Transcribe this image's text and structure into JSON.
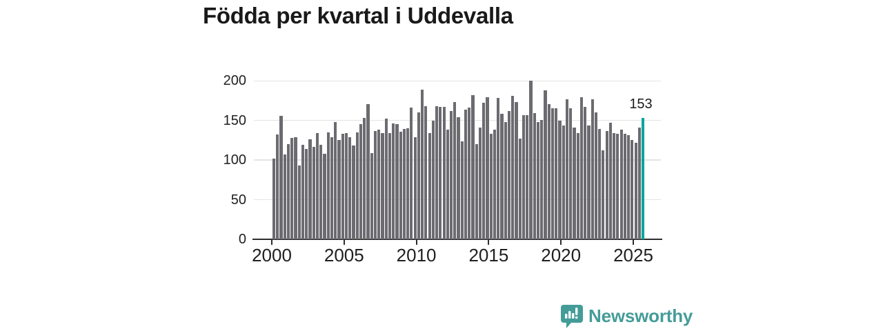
{
  "title": "Födda per kvartal i Uddevalla",
  "annotation": {
    "label": "153"
  },
  "logo": {
    "brand": "Newsworthy"
  },
  "colors": {
    "bar": "#6b6b70",
    "highlight": "#00a69c",
    "gridline": "#e3e3e3",
    "axis": "#2d2d2d",
    "text": "#202020",
    "logo_teal": "#449c98"
  },
  "chart_data": {
    "type": "bar",
    "title": "Födda per kvartal i Uddevalla",
    "frequency": "quarterly",
    "period_start": "2000-Q1",
    "period_end": "2025-Q3",
    "x_tick_labels": [
      "2000",
      "2005",
      "2010",
      "2015",
      "2020",
      "2025"
    ],
    "y_tick_labels": [
      "0",
      "50",
      "100",
      "150",
      "200"
    ],
    "y_tick_values": [
      0,
      50,
      100,
      150,
      200
    ],
    "ylim": [
      0,
      210
    ],
    "grid": "horizontal",
    "legend": "none",
    "highlight_index": 102,
    "highlight_value": 153,
    "values": [
      102,
      132,
      156,
      107,
      120,
      128,
      129,
      93,
      119,
      114,
      126,
      117,
      134,
      119,
      108,
      135,
      129,
      148,
      125,
      133,
      134,
      129,
      118,
      135,
      145,
      153,
      171,
      109,
      137,
      138,
      134,
      152,
      134,
      146,
      145,
      136,
      139,
      140,
      166,
      129,
      160,
      189,
      168,
      134,
      150,
      168,
      167,
      167,
      138,
      162,
      173,
      154,
      124,
      164,
      166,
      182,
      120,
      141,
      172,
      179,
      133,
      138,
      178,
      158,
      148,
      162,
      181,
      173,
      127,
      157,
      157,
      200,
      159,
      148,
      151,
      188,
      171,
      165,
      165,
      150,
      144,
      177,
      165,
      141,
      134,
      179,
      167,
      144,
      177,
      160,
      139,
      112,
      137,
      147,
      134,
      133,
      138,
      133,
      131,
      125,
      122,
      141,
      153
    ]
  }
}
